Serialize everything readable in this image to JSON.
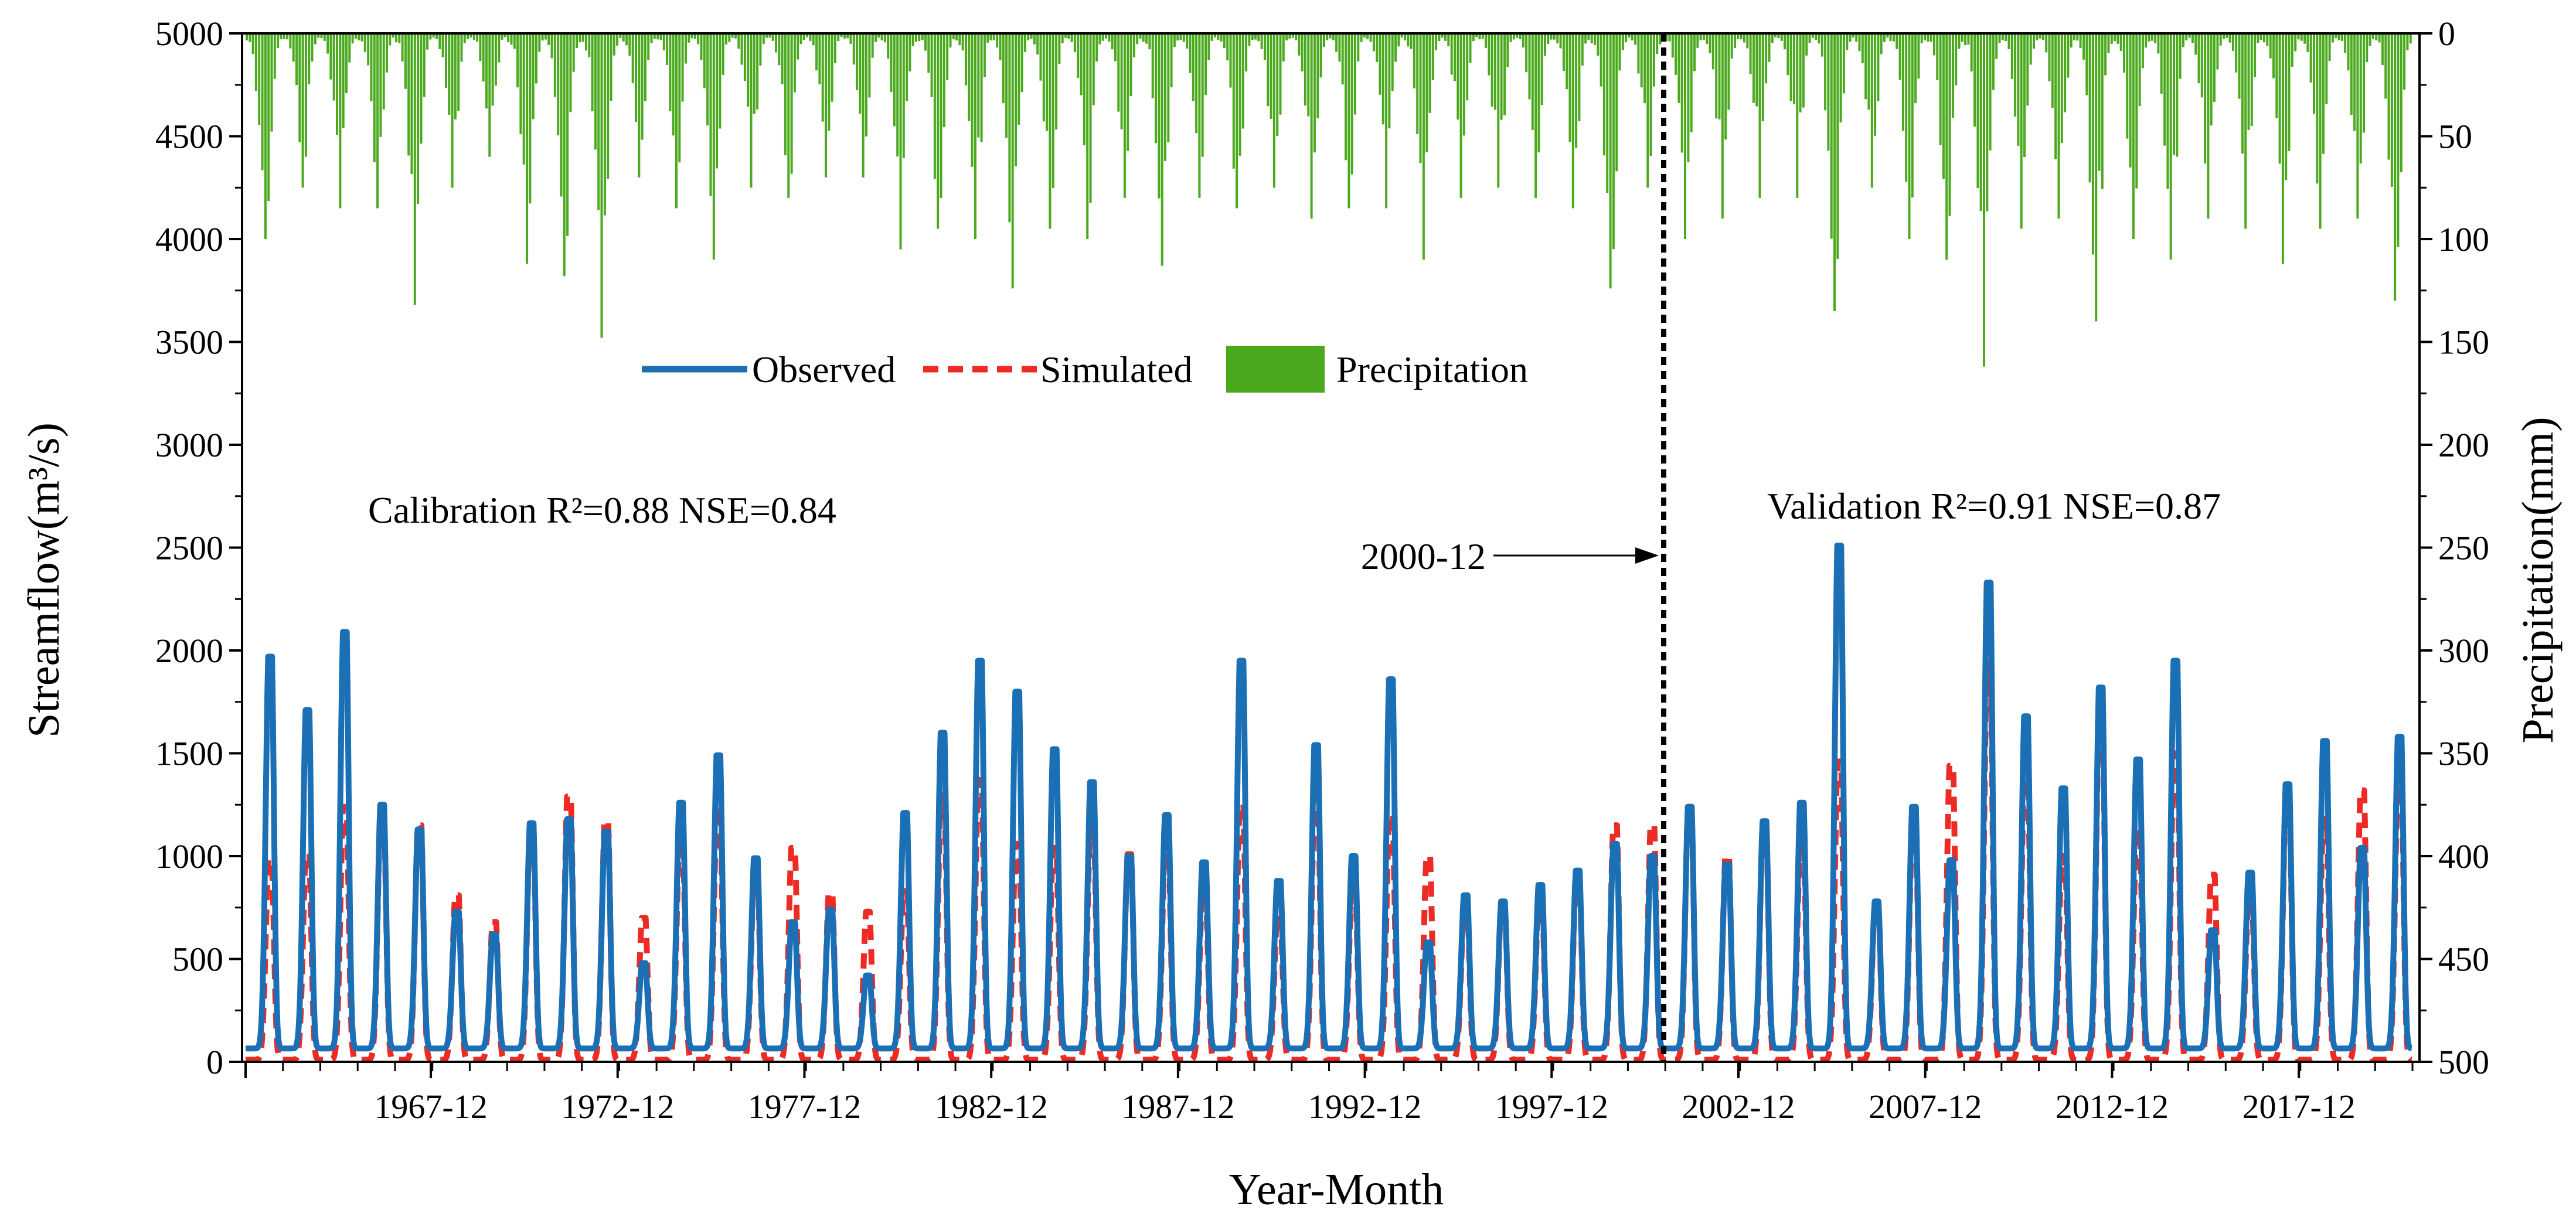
{
  "chart_data": {
    "type": "line",
    "title": "",
    "xlabel": "Year-Month",
    "ylabel": "Streamflow(m³/s)",
    "y2label": "Precipitation(mm)",
    "ylim": [
      0,
      5000
    ],
    "y2lim": [
      500,
      0
    ],
    "y2_inverted": true,
    "yticks": [
      "0",
      "500",
      "1000",
      "1500",
      "2000",
      "2500",
      "3000",
      "3500",
      "4000",
      "4500",
      "5000"
    ],
    "y2ticks": [
      "500",
      "450",
      "400",
      "350",
      "300",
      "250",
      "200",
      "150",
      "100",
      "50",
      "0"
    ],
    "xticks": [
      "1967-12",
      "1972-12",
      "1977-12",
      "1982-12",
      "1987-12",
      "1992-12",
      "1997-12",
      "2002-12",
      "2007-12",
      "2012-12",
      "2017-12"
    ],
    "x_start_year": 1963,
    "x_end_year": 2020,
    "grid": false,
    "legend_placement": "upper-center",
    "series": [
      {
        "name": "Observed",
        "color": "#1a6fb5",
        "style": "solid"
      },
      {
        "name": "Simulated",
        "color": "#ee2a24",
        "style": "dashed"
      },
      {
        "name": "Precipitation",
        "color": "#4aa91c",
        "style": "bar"
      }
    ],
    "annual_peaks": [
      {
        "year": 1963,
        "observed": 1970,
        "simulated": 980,
        "precip_max": 100
      },
      {
        "year": 1964,
        "observed": 1710,
        "simulated": 1010,
        "precip_max": 75
      },
      {
        "year": 1965,
        "observed": 2090,
        "simulated": 1240,
        "precip_max": 85
      },
      {
        "year": 1966,
        "observed": 1250,
        "simulated": 1220,
        "precip_max": 85
      },
      {
        "year": 1967,
        "observed": 1130,
        "simulated": 1150,
        "precip_max": 132
      },
      {
        "year": 1968,
        "observed": 730,
        "simulated": 810,
        "precip_max": 75
      },
      {
        "year": 1969,
        "observed": 620,
        "simulated": 680,
        "precip_max": 60
      },
      {
        "year": 1970,
        "observed": 1160,
        "simulated": 1130,
        "precip_max": 112
      },
      {
        "year": 1971,
        "observed": 1180,
        "simulated": 1290,
        "precip_max": 118
      },
      {
        "year": 1972,
        "observed": 1120,
        "simulated": 1170,
        "precip_max": 148
      },
      {
        "year": 1973,
        "observed": 480,
        "simulated": 700,
        "precip_max": 70
      },
      {
        "year": 1974,
        "observed": 1260,
        "simulated": 1090,
        "precip_max": 85
      },
      {
        "year": 1975,
        "observed": 1490,
        "simulated": 1240,
        "precip_max": 110
      },
      {
        "year": 1976,
        "observed": 990,
        "simulated": 930,
        "precip_max": 75
      },
      {
        "year": 1977,
        "observed": 680,
        "simulated": 1040,
        "precip_max": 80
      },
      {
        "year": 1978,
        "observed": 740,
        "simulated": 820,
        "precip_max": 70
      },
      {
        "year": 1979,
        "observed": 420,
        "simulated": 730,
        "precip_max": 70
      },
      {
        "year": 1980,
        "observed": 1210,
        "simulated": 830,
        "precip_max": 105
      },
      {
        "year": 1981,
        "observed": 1600,
        "simulated": 1300,
        "precip_max": 95
      },
      {
        "year": 1982,
        "observed": 1950,
        "simulated": 1370,
        "precip_max": 100
      },
      {
        "year": 1983,
        "observed": 1800,
        "simulated": 1060,
        "precip_max": 124
      },
      {
        "year": 1984,
        "observed": 1520,
        "simulated": 1040,
        "precip_max": 95
      },
      {
        "year": 1985,
        "observed": 1360,
        "simulated": 1170,
        "precip_max": 100
      },
      {
        "year": 1986,
        "observed": 1000,
        "simulated": 1010,
        "precip_max": 80
      },
      {
        "year": 1987,
        "observed": 1200,
        "simulated": 1070,
        "precip_max": 113
      },
      {
        "year": 1988,
        "observed": 970,
        "simulated": 830,
        "precip_max": 80
      },
      {
        "year": 1989,
        "observed": 1950,
        "simulated": 1250,
        "precip_max": 85
      },
      {
        "year": 1990,
        "observed": 880,
        "simulated": 710,
        "precip_max": 75
      },
      {
        "year": 1991,
        "observed": 1540,
        "simulated": 1290,
        "precip_max": 90
      },
      {
        "year": 1992,
        "observed": 1000,
        "simulated": 870,
        "precip_max": 85
      },
      {
        "year": 1993,
        "observed": 1860,
        "simulated": 1200,
        "precip_max": 85
      },
      {
        "year": 1994,
        "observed": 580,
        "simulated": 1000,
        "precip_max": 110
      },
      {
        "year": 1995,
        "observed": 810,
        "simulated": 760,
        "precip_max": 80
      },
      {
        "year": 1996,
        "observed": 780,
        "simulated": 770,
        "precip_max": 75
      },
      {
        "year": 1997,
        "observed": 860,
        "simulated": 800,
        "precip_max": 80
      },
      {
        "year": 1998,
        "observed": 930,
        "simulated": 900,
        "precip_max": 85
      },
      {
        "year": 1999,
        "observed": 1060,
        "simulated": 1150,
        "precip_max": 124
      },
      {
        "year": 2000,
        "observed": 1000,
        "simulated": 1150,
        "precip_max": 75
      },
      {
        "year": 2001,
        "observed": 1240,
        "simulated": 1240,
        "precip_max": 100
      },
      {
        "year": 2002,
        "observed": 960,
        "simulated": 1000,
        "precip_max": 90
      },
      {
        "year": 2003,
        "observed": 1170,
        "simulated": 1150,
        "precip_max": 80
      },
      {
        "year": 2004,
        "observed": 1260,
        "simulated": 1080,
        "precip_max": 80
      },
      {
        "year": 2005,
        "observed": 2510,
        "simulated": 1460,
        "precip_max": 135
      },
      {
        "year": 2006,
        "observed": 780,
        "simulated": 760,
        "precip_max": 75
      },
      {
        "year": 2007,
        "observed": 1240,
        "simulated": 1160,
        "precip_max": 100
      },
      {
        "year": 2008,
        "observed": 980,
        "simulated": 1440,
        "precip_max": 110
      },
      {
        "year": 2009,
        "observed": 2330,
        "simulated": 1940,
        "precip_max": 162
      },
      {
        "year": 2010,
        "observed": 1680,
        "simulated": 1430,
        "precip_max": 95
      },
      {
        "year": 2011,
        "observed": 1330,
        "simulated": 1000,
        "precip_max": 90
      },
      {
        "year": 2012,
        "observed": 1820,
        "simulated": 1710,
        "precip_max": 140
      },
      {
        "year": 2013,
        "observed": 1470,
        "simulated": 1130,
        "precip_max": 100
      },
      {
        "year": 2014,
        "observed": 1950,
        "simulated": 1500,
        "precip_max": 110
      },
      {
        "year": 2015,
        "observed": 640,
        "simulated": 910,
        "precip_max": 90
      },
      {
        "year": 2016,
        "observed": 920,
        "simulated": 800,
        "precip_max": 95
      },
      {
        "year": 2017,
        "observed": 1350,
        "simulated": 1300,
        "precip_max": 112
      },
      {
        "year": 2018,
        "observed": 1560,
        "simulated": 1180,
        "precip_max": 95
      },
      {
        "year": 2019,
        "observed": 1040,
        "simulated": 1320,
        "precip_max": 90
      },
      {
        "year": 2020,
        "observed": 1580,
        "simulated": 1400,
        "precip_max": 130
      }
    ],
    "baseflow_observed": 65,
    "baseflow_simulated": 10,
    "split_point": "2000-12",
    "annotations": {
      "calibration": "Calibration  R²=0.88 NSE=0.84",
      "validation": "Validation  R²=0.91  NSE=0.87",
      "split_label": "2000-12"
    }
  }
}
